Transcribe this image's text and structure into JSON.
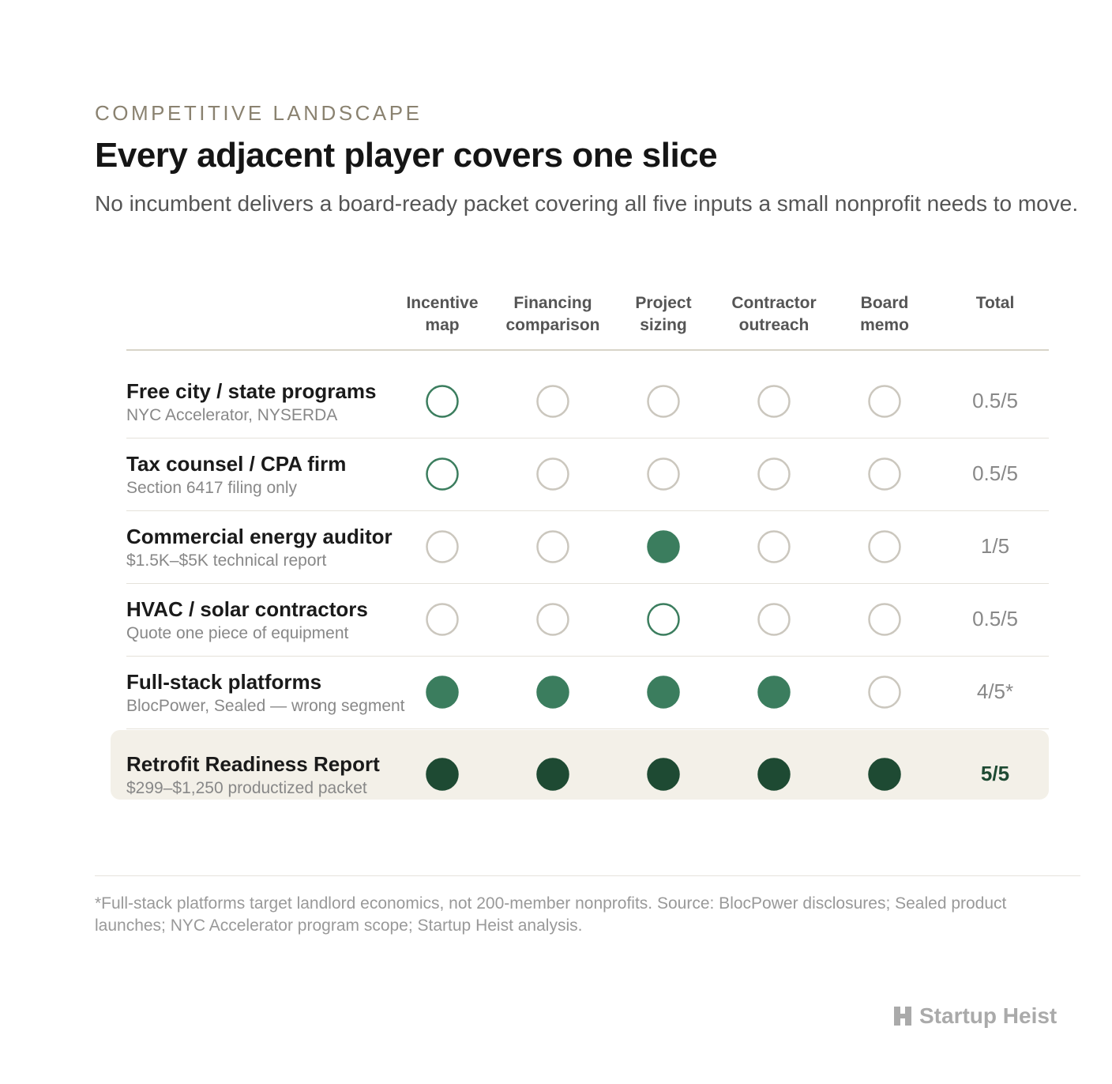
{
  "eyebrow": "COMPETITIVE LANDSCAPE",
  "title": "Every adjacent player covers one slice",
  "subtitle": "No incumbent delivers a board-ready packet covering all five inputs a small nonprofit needs to move.",
  "table": {
    "columns": [
      [
        "Incentive",
        "map"
      ],
      [
        "Financing",
        "comparison"
      ],
      [
        "Project",
        "sizing"
      ],
      [
        "Contractor",
        "outreach"
      ],
      [
        "Board",
        "memo"
      ],
      [
        "Total"
      ]
    ],
    "rows": [
      {
        "name": "Free city / state programs",
        "note": "NYC Accelerator, NYSERDA",
        "coverage": [
          0.5,
          0,
          0,
          0,
          0
        ],
        "total": "0.5/5",
        "color": "#3b7d5e"
      },
      {
        "name": "Tax counsel / CPA firm",
        "note": "Section 6417 filing only",
        "coverage": [
          0.5,
          0,
          0,
          0,
          0
        ],
        "total": "0.5/5",
        "color": "#3b7d5e"
      },
      {
        "name": "Commercial energy auditor",
        "note": "$1.5K–$5K technical report",
        "coverage": [
          0,
          0,
          1,
          0,
          0
        ],
        "total": "1/5",
        "color": "#3b7d5e"
      },
      {
        "name": "HVAC / solar contractors",
        "note": "Quote one piece of equipment",
        "coverage": [
          0,
          0,
          0.5,
          0,
          0
        ],
        "total": "0.5/5",
        "color": "#3b7d5e"
      },
      {
        "name": "Full-stack platforms",
        "note": "BlocPower, Sealed — wrong segment",
        "coverage": [
          1,
          1,
          1,
          1,
          0
        ],
        "total": "4/5*",
        "color": "#3b7d5e"
      },
      {
        "name": "Retrofit Readiness Report",
        "note": "$299–$1,250 productized packet",
        "coverage": [
          1,
          1,
          1,
          1,
          1
        ],
        "total": "5/5",
        "color": "#1e4a33",
        "highlight": true
      }
    ]
  },
  "footnote": "*Full-stack platforms target landlord economics, not 200-member nonprofits. Source: BlocPower disclosures; Sealed product launches; NYC Accelerator program scope; Startup Heist analysis.",
  "brand": "Startup Heist"
}
